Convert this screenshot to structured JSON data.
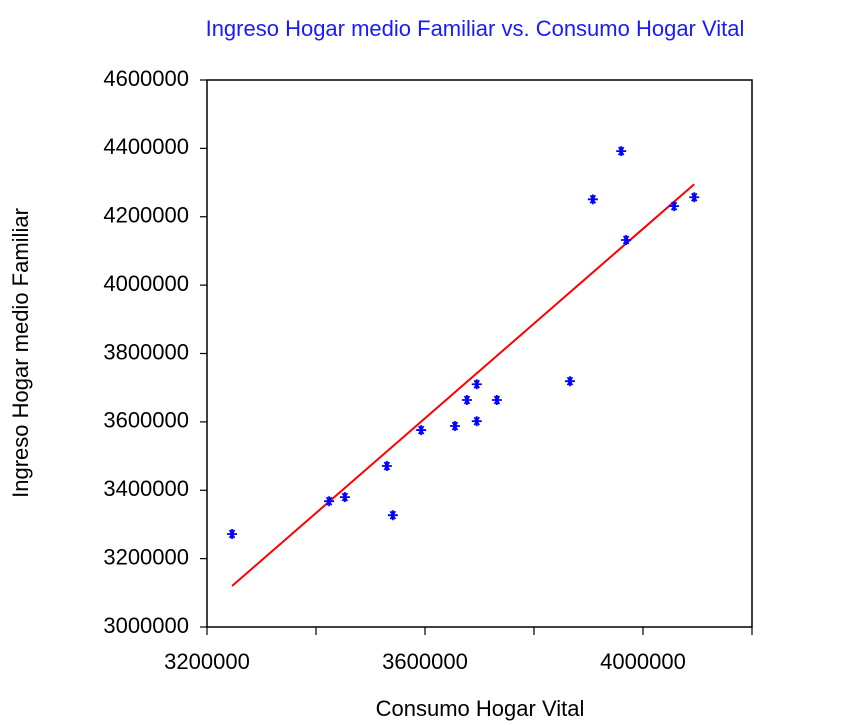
{
  "chart_data": {
    "type": "scatter",
    "title": "Ingreso Hogar medio Familiar vs. Consumo Hogar Vital",
    "x_label": "Consumo Hogar Vital",
    "y_label": "Ingreso Hogar medio Familiar",
    "xlim": [
      3200000,
      4200000
    ],
    "ylim": [
      3000000,
      4600000
    ],
    "xticks": [
      3200000,
      3600000,
      4000000
    ],
    "xminor_ticks": [
      3400000,
      3800000,
      4200000
    ],
    "yticks": [
      3000000,
      3200000,
      3400000,
      3600000,
      3800000,
      4000000,
      4200000,
      4400000,
      4600000
    ],
    "series": [
      {
        "color": "#0000ff",
        "x": [
          3246000,
          3424000,
          3453000,
          3530000,
          3541000,
          3593000,
          3655000,
          3677000,
          3695000,
          3695000,
          3732000,
          3866000,
          3908000,
          3960000,
          3969000,
          4057000,
          4094000
        ],
        "values": [
          3272000,
          3368000,
          3380000,
          3471000,
          3327000,
          3576000,
          3588000,
          3664000,
          3710000,
          3602000,
          3664000,
          3719000,
          4251000,
          4392000,
          4132000,
          4231000,
          4257000
        ]
      }
    ],
    "fit_line": {
      "color": "#ff0000",
      "x": [
        3246000,
        4094000
      ],
      "y": [
        3120000,
        4295000
      ]
    }
  }
}
